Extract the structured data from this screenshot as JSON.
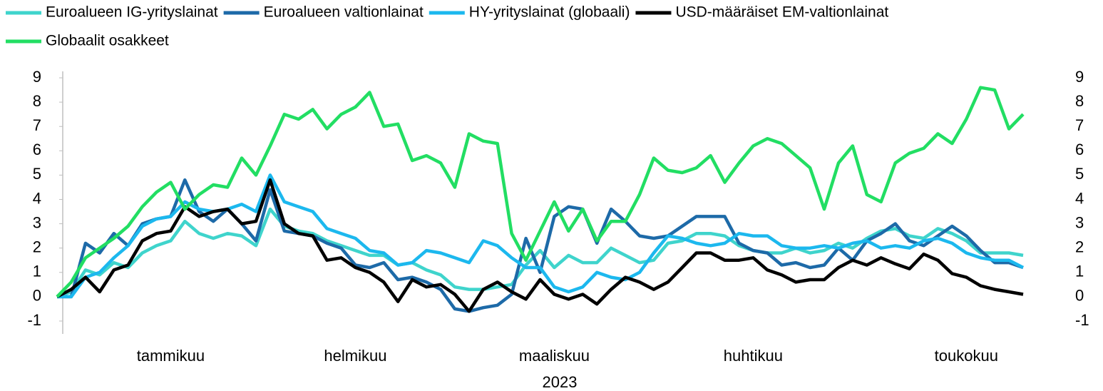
{
  "chart_data": {
    "type": "line",
    "x_label": "2023",
    "categories": [
      null,
      null,
      null,
      null,
      null,
      null,
      null,
      null,
      "tammikuu",
      null,
      null,
      null,
      null,
      null,
      null,
      null,
      null,
      null,
      null,
      null,
      null,
      "helmikuu",
      null,
      null,
      null,
      null,
      null,
      null,
      null,
      null,
      null,
      null,
      null,
      null,
      null,
      "maaliskuu",
      null,
      null,
      null,
      null,
      null,
      null,
      null,
      null,
      null,
      null,
      null,
      null,
      null,
      "huhtikuu",
      null,
      null,
      null,
      null,
      null,
      null,
      null,
      null,
      null,
      null,
      null,
      null,
      null,
      null,
      "toukokuu",
      null,
      null,
      null,
      null
    ],
    "series": [
      {
        "name": "Euroalueen IG-yrityslainat",
        "color": "#3fd4cc",
        "values": [
          0,
          0.2,
          1.1,
          0.9,
          1.4,
          1.2,
          1.8,
          2.1,
          2.3,
          3.1,
          2.6,
          2.4,
          2.6,
          2.5,
          2.1,
          3.6,
          2.9,
          2.7,
          2.6,
          2.3,
          2.1,
          1.9,
          1.7,
          1.7,
          1.3,
          1.4,
          1.1,
          0.9,
          0.4,
          0.3,
          0.3,
          0.4,
          0.5,
          1.3,
          1.9,
          1.2,
          1.7,
          1.4,
          1.4,
          2.0,
          1.7,
          1.4,
          1.5,
          2.2,
          2.3,
          2.6,
          2.6,
          2.5,
          2.1,
          1.9,
          1.8,
          1.8,
          2.0,
          1.8,
          1.9,
          2.2,
          2.0,
          2.4,
          2.7,
          2.8,
          2.5,
          2.4,
          2.8,
          2.6,
          2.3,
          1.8,
          1.8,
          1.8,
          1.7
        ]
      },
      {
        "name": "Euroalueen valtionlainat",
        "color": "#1d6aa8",
        "values": [
          0,
          0,
          2.2,
          1.8,
          2.6,
          2.1,
          3.0,
          3.2,
          3.3,
          4.8,
          3.5,
          3.1,
          3.6,
          3.0,
          2.3,
          4.4,
          2.7,
          2.6,
          2.5,
          2.2,
          2.0,
          1.3,
          1.2,
          1.4,
          0.7,
          0.8,
          0.6,
          0.3,
          -0.5,
          -0.6,
          -0.45,
          -0.35,
          0.1,
          2.4,
          1.0,
          3.3,
          3.7,
          3.6,
          2.2,
          3.6,
          3.1,
          2.5,
          2.4,
          2.5,
          2.9,
          3.3,
          3.3,
          3.3,
          2.2,
          1.9,
          1.8,
          1.3,
          1.4,
          1.2,
          1.3,
          2.0,
          1.5,
          2.3,
          2.6,
          3.0,
          2.3,
          2.1,
          2.5,
          2.9,
          2.5,
          1.9,
          1.4,
          1.4,
          1.2
        ]
      },
      {
        "name": "HY-yrityslainat (globaali)",
        "color": "#1cb8ee",
        "values": [
          0,
          0,
          0.8,
          1.0,
          1.6,
          2.1,
          2.9,
          3.2,
          3.3,
          3.9,
          3.6,
          3.5,
          3.6,
          3.8,
          3.5,
          5.0,
          3.9,
          3.7,
          3.5,
          2.8,
          2.6,
          2.4,
          1.9,
          1.8,
          1.3,
          1.4,
          1.9,
          1.8,
          1.6,
          1.4,
          2.3,
          2.1,
          1.6,
          1.2,
          1.2,
          0.4,
          0.2,
          0.4,
          1.0,
          0.8,
          0.7,
          1.0,
          1.8,
          2.5,
          2.4,
          2.2,
          2.1,
          2.2,
          2.6,
          2.5,
          2.5,
          2.1,
          2.0,
          2.0,
          2.1,
          2.0,
          2.2,
          2.3,
          2.0,
          2.1,
          2.0,
          2.3,
          2.4,
          2.2,
          1.8,
          1.6,
          1.5,
          1.5,
          1.2
        ]
      },
      {
        "name": "USD-määräiset EM-valtionlainat",
        "color": "#000000",
        "values": [
          0,
          0.3,
          0.8,
          0.2,
          1.1,
          1.3,
          2.3,
          2.6,
          2.7,
          3.7,
          3.3,
          3.5,
          3.6,
          3.0,
          3.1,
          4.8,
          3.0,
          2.6,
          2.5,
          1.5,
          1.6,
          1.2,
          1.0,
          0.6,
          -0.2,
          0.7,
          0.4,
          0.5,
          0.1,
          -0.6,
          0.3,
          0.6,
          0.2,
          -0.1,
          0.7,
          0.1,
          -0.1,
          0.1,
          -0.3,
          0.3,
          0.8,
          0.6,
          0.3,
          0.6,
          1.2,
          1.8,
          1.8,
          1.5,
          1.5,
          1.6,
          1.1,
          0.9,
          0.6,
          0.7,
          0.7,
          1.2,
          1.5,
          1.3,
          1.6,
          1.35,
          1.15,
          1.75,
          1.5,
          0.95,
          0.8,
          0.45,
          0.3,
          0.2,
          0.1
        ]
      },
      {
        "name": "Globaalit osakkeet",
        "color": "#22de63",
        "values": [
          0,
          0.6,
          1.6,
          2.0,
          2.4,
          2.9,
          3.7,
          4.3,
          4.7,
          3.6,
          4.2,
          4.6,
          4.5,
          5.7,
          5.0,
          6.2,
          7.5,
          7.3,
          7.7,
          6.9,
          7.5,
          7.8,
          8.4,
          7.0,
          7.1,
          5.6,
          5.8,
          5.5,
          4.5,
          6.7,
          6.4,
          6.3,
          2.6,
          1.5,
          2.7,
          3.9,
          2.7,
          3.6,
          2.3,
          3.1,
          3.1,
          4.2,
          5.7,
          5.2,
          5.1,
          5.3,
          5.8,
          4.7,
          5.5,
          6.2,
          6.5,
          6.3,
          5.8,
          5.3,
          3.6,
          5.5,
          6.2,
          4.2,
          3.9,
          5.5,
          5.9,
          6.1,
          6.7,
          6.3,
          7.3,
          8.6,
          8.5,
          6.9,
          7.5
        ]
      }
    ],
    "ylim": [
      -1.5,
      9.5
    ],
    "yticks": [
      -1,
      0,
      1,
      2,
      3,
      4,
      5,
      6,
      7,
      8,
      9
    ],
    "y2lim": [
      -1.5,
      9.5
    ],
    "y2ticks": [
      -1,
      0,
      1,
      2,
      3,
      4,
      5,
      6,
      7,
      8,
      9
    ]
  }
}
